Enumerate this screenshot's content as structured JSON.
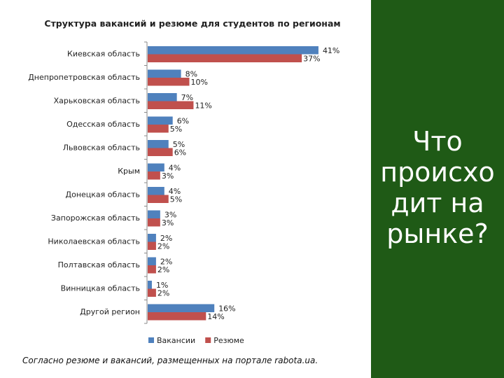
{
  "chart_data": {
    "type": "bar",
    "orientation": "horizontal",
    "title": "Структура вакансий и резюме для студентов по регионам",
    "categories": [
      "Киевская область",
      "Днепропетровская область",
      "Харьковская область",
      "Одесская область",
      "Львовская область",
      "Крым",
      "Донецкая область",
      "Запорожская область",
      "Николаевская область",
      "Полтавская область",
      "Винницкая область",
      "Другой регион"
    ],
    "series": [
      {
        "name": "Вакансии",
        "color": "#4f81bd",
        "values": [
          41,
          8,
          7,
          6,
          5,
          4,
          4,
          3,
          2,
          2,
          1,
          16
        ],
        "labels": [
          "41%",
          "8%",
          "7%",
          "6%",
          "5%",
          "4%",
          "4%",
          "3%",
          "2%",
          "2%",
          "1%",
          "16%"
        ]
      },
      {
        "name": "Резюме",
        "color": "#c0504d",
        "values": [
          37,
          10,
          11,
          5,
          6,
          3,
          5,
          3,
          2,
          2,
          2,
          14
        ],
        "labels": [
          "37%",
          "10%",
          "11%",
          "5%",
          "6%",
          "3%",
          "5%",
          "3%",
          "2%",
          "2%",
          "2%",
          "14%"
        ]
      }
    ],
    "value_unit": "%",
    "legend_position": "bottom",
    "grid": false
  },
  "footnote": "Согласно резюме и вакансий, размещенных на портале rabota.ua.",
  "side_panel": {
    "background": "#1f5a16",
    "title_lines": [
      "Что",
      "происхо",
      "дит на",
      "рынке?"
    ]
  }
}
